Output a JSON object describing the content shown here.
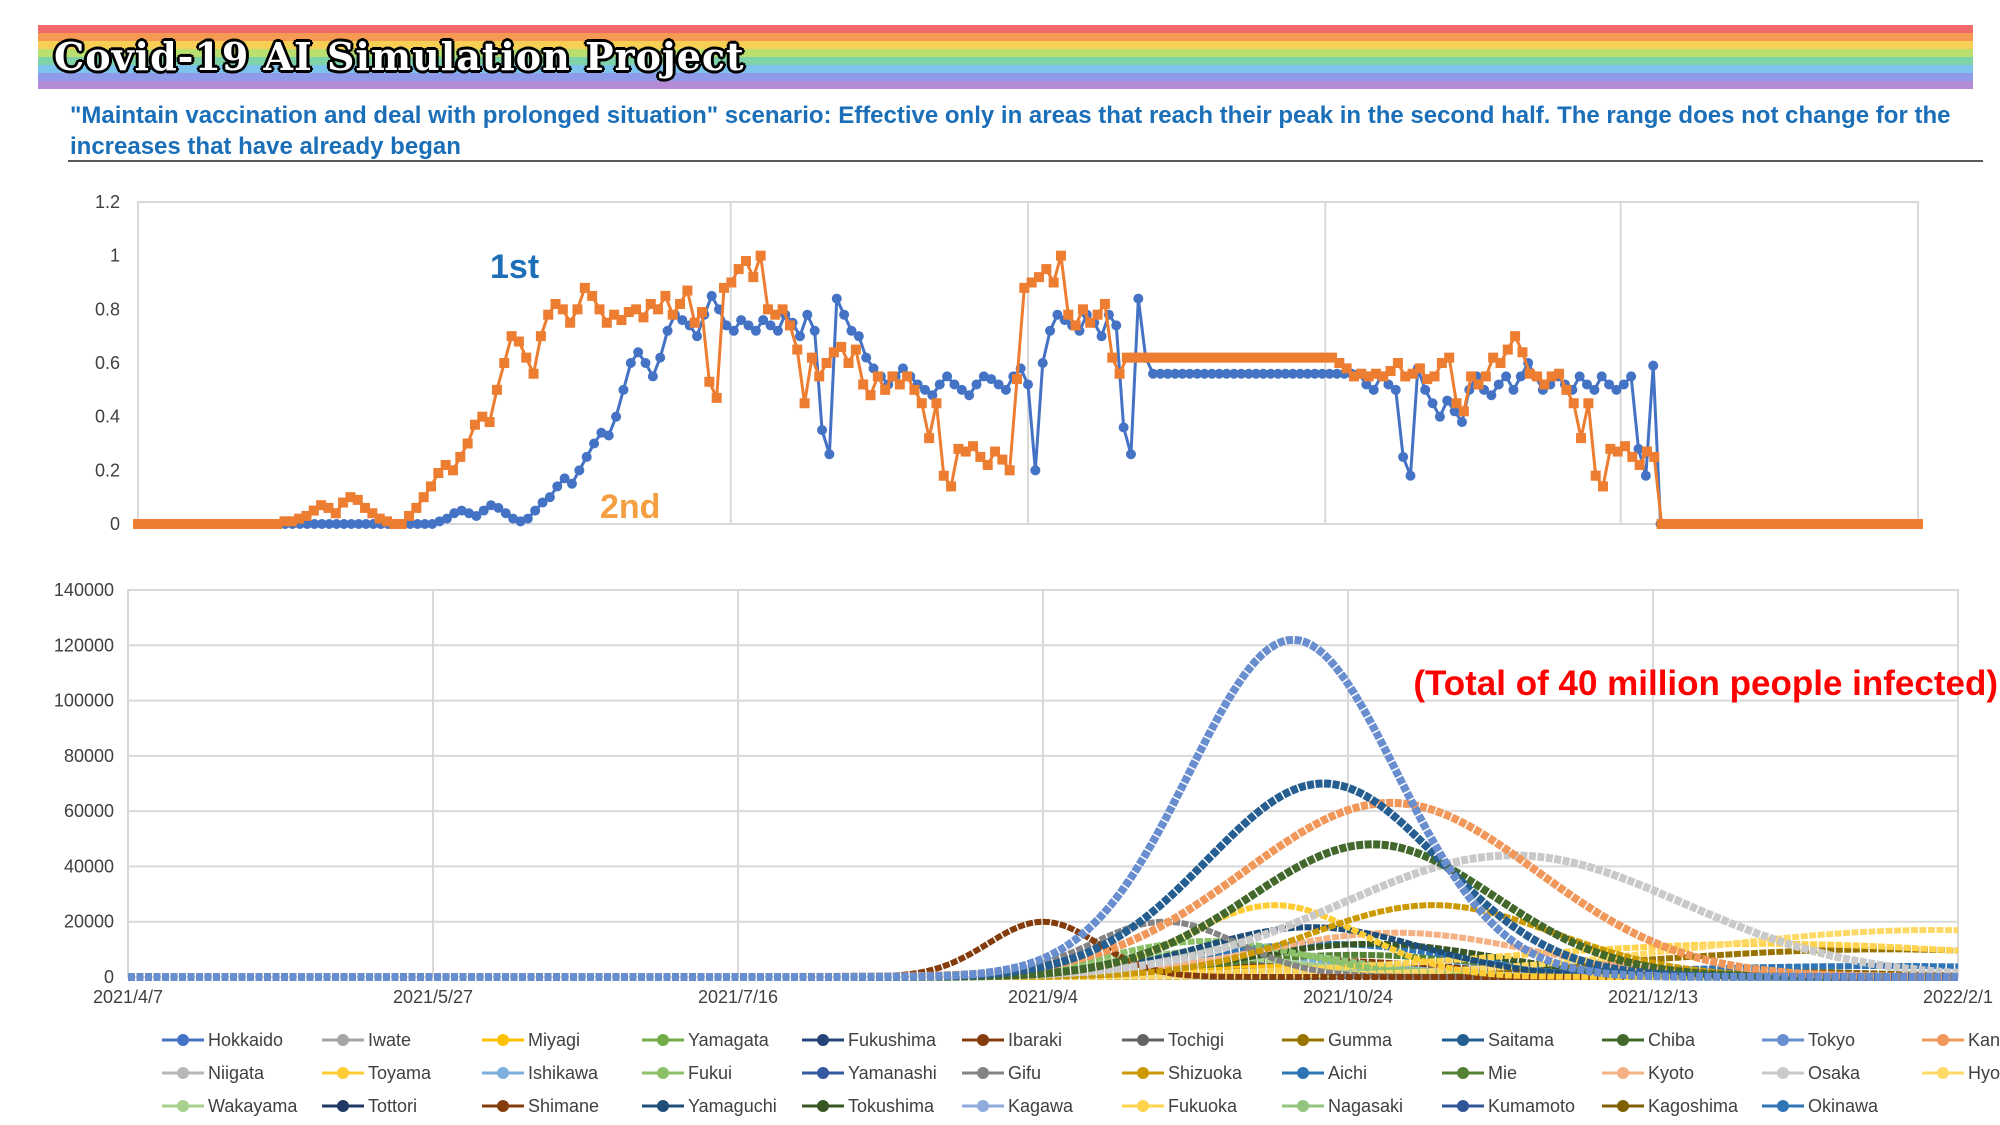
{
  "header": {
    "title": "Covid-19 AI Simulation Project",
    "subtitle": "\"Maintain vaccination and deal with prolonged situation\" scenario: Effective only in areas that reach their peak in the second half. The range does not change for the increases that have already began",
    "rainbow_colors": [
      "#f16a6a",
      "#f59a52",
      "#f7cf55",
      "#b9df6e",
      "#7fd3a8",
      "#7cc4ec",
      "#8f9be8",
      "#b48ad6"
    ]
  },
  "chart_data": [
    {
      "type": "line",
      "ylim": [
        0,
        1.2
      ],
      "yticks": [
        "0",
        "0.2",
        "0.4",
        "0.6",
        "0.8",
        "1",
        "1.2"
      ],
      "annotations": [
        {
          "text": "1st",
          "color": "#1f6fb8"
        },
        {
          "text": "2nd",
          "color": "#f4a040"
        }
      ],
      "series": [
        {
          "color": "#4472c4",
          "values": [
            0,
            0,
            0,
            0,
            0,
            0,
            0,
            0,
            0,
            0,
            0,
            0,
            0,
            0,
            0,
            0,
            0,
            0,
            0,
            0,
            0,
            0,
            0,
            0,
            0,
            0,
            0,
            0,
            0,
            0,
            0,
            0,
            0,
            0,
            0,
            0,
            0,
            0,
            0,
            0,
            0,
            0.01,
            0.02,
            0.04,
            0.05,
            0.04,
            0.03,
            0.05,
            0.07,
            0.06,
            0.04,
            0.02,
            0.01,
            0.02,
            0.05,
            0.08,
            0.1,
            0.14,
            0.17,
            0.15,
            0.2,
            0.25,
            0.3,
            0.34,
            0.33,
            0.4,
            0.5,
            0.6,
            0.64,
            0.6,
            0.55,
            0.62,
            0.72,
            0.78,
            0.76,
            0.74,
            0.7,
            0.78,
            0.85,
            0.8,
            0.74,
            0.72,
            0.76,
            0.74,
            0.72,
            0.76,
            0.74,
            0.72,
            0.78,
            0.75,
            0.7,
            0.78,
            0.72,
            0.35,
            0.26,
            0.84,
            0.78,
            0.72,
            0.7,
            0.62,
            0.58,
            0.55,
            0.52,
            0.55,
            0.58,
            0.55,
            0.52,
            0.5,
            0.48,
            0.52,
            0.55,
            0.52,
            0.5,
            0.48,
            0.52,
            0.55,
            0.54,
            0.52,
            0.5,
            0.55,
            0.58,
            0.52,
            0.2,
            0.6,
            0.72,
            0.78,
            0.76,
            0.74,
            0.72,
            0.78,
            0.75,
            0.7,
            0.78,
            0.74,
            0.36,
            0.26,
            0.84,
            0.62,
            0.56,
            0.56,
            0.56,
            0.56,
            0.56,
            0.56,
            0.56,
            0.56,
            0.56,
            0.56,
            0.56,
            0.56,
            0.56,
            0.56,
            0.56,
            0.56,
            0.56,
            0.56,
            0.56,
            0.56,
            0.56,
            0.56,
            0.56,
            0.56,
            0.56,
            0.56,
            0.56,
            0.56,
            0.56,
            0.52,
            0.5,
            0.55,
            0.52,
            0.5,
            0.25,
            0.18,
            0.58,
            0.5,
            0.45,
            0.4,
            0.46,
            0.42,
            0.38,
            0.5,
            0.55,
            0.5,
            0.48,
            0.52,
            0.55,
            0.5,
            0.55,
            0.6,
            0.55,
            0.5,
            0.52,
            0.55,
            0.52,
            0.5,
            0.55,
            0.52,
            0.5,
            0.55,
            0.52,
            0.5,
            0.52,
            0.55,
            0.28,
            0.18,
            0.59,
            0,
            0,
            0,
            0,
            0,
            0,
            0,
            0,
            0,
            0,
            0,
            0,
            0,
            0,
            0,
            0,
            0,
            0,
            0,
            0,
            0,
            0,
            0,
            0,
            0,
            0,
            0,
            0,
            0,
            0,
            0,
            0,
            0,
            0,
            0,
            0
          ]
        },
        {
          "color": "#ed7d31",
          "values": [
            0,
            0,
            0,
            0,
            0,
            0,
            0,
            0,
            0,
            0,
            0,
            0,
            0,
            0,
            0,
            0,
            0,
            0,
            0,
            0,
            0.01,
            0.01,
            0.02,
            0.03,
            0.05,
            0.07,
            0.06,
            0.04,
            0.08,
            0.1,
            0.09,
            0.06,
            0.04,
            0.02,
            0.01,
            0,
            0,
            0.03,
            0.06,
            0.1,
            0.14,
            0.19,
            0.22,
            0.2,
            0.25,
            0.3,
            0.37,
            0.4,
            0.38,
            0.5,
            0.6,
            0.7,
            0.68,
            0.62,
            0.56,
            0.7,
            0.78,
            0.82,
            0.8,
            0.75,
            0.8,
            0.88,
            0.85,
            0.8,
            0.75,
            0.78,
            0.76,
            0.79,
            0.8,
            0.77,
            0.82,
            0.8,
            0.85,
            0.78,
            0.82,
            0.87,
            0.75,
            0.79,
            0.53,
            0.47,
            0.88,
            0.9,
            0.95,
            0.98,
            0.92,
            1,
            0.8,
            0.78,
            0.8,
            0.74,
            0.65,
            0.45,
            0.62,
            0.55,
            0.6,
            0.64,
            0.66,
            0.6,
            0.65,
            0.52,
            0.48,
            0.55,
            0.5,
            0.55,
            0.52,
            0.55,
            0.5,
            0.45,
            0.32,
            0.45,
            0.18,
            0.14,
            0.28,
            0.27,
            0.29,
            0.25,
            0.22,
            0.27,
            0.24,
            0.2,
            0.54,
            0.88,
            0.9,
            0.92,
            0.95,
            0.9,
            1,
            0.78,
            0.74,
            0.8,
            0.75,
            0.78,
            0.82,
            0.62,
            0.56,
            0.62,
            0.62,
            0.62,
            0.62,
            0.62,
            0.62,
            0.62,
            0.62,
            0.62,
            0.62,
            0.62,
            0.62,
            0.62,
            0.62,
            0.62,
            0.62,
            0.62,
            0.62,
            0.62,
            0.62,
            0.62,
            0.62,
            0.62,
            0.62,
            0.62,
            0.62,
            0.62,
            0.62,
            0.62,
            0.6,
            0.58,
            0.55,
            0.56,
            0.55,
            0.56,
            0.55,
            0.57,
            0.6,
            0.55,
            0.56,
            0.58,
            0.54,
            0.55,
            0.6,
            0.62,
            0.45,
            0.42,
            0.55,
            0.52,
            0.55,
            0.62,
            0.6,
            0.65,
            0.7,
            0.64,
            0.56,
            0.55,
            0.52,
            0.55,
            0.56,
            0.5,
            0.45,
            0.32,
            0.45,
            0.18,
            0.14,
            0.28,
            0.27,
            0.29,
            0.25,
            0.22,
            0.27,
            0.25,
            0,
            0,
            0,
            0,
            0,
            0,
            0,
            0,
            0,
            0,
            0,
            0,
            0,
            0,
            0,
            0,
            0,
            0,
            0,
            0,
            0,
            0,
            0,
            0,
            0,
            0,
            0,
            0,
            0,
            0,
            0,
            0,
            0,
            0,
            0,
            0
          ]
        }
      ]
    },
    {
      "type": "line",
      "ylim": [
        0,
        140000
      ],
      "yticks": [
        "0",
        "20000",
        "40000",
        "60000",
        "80000",
        "100000",
        "120000",
        "140000"
      ],
      "x_range": [
        "2021-04-07",
        "2022-02-01"
      ],
      "xtick_labels": [
        "2021/4/7",
        "2021/5/27",
        "2021/7/16",
        "2021/9/4",
        "2021/10/24",
        "2021/12/13",
        "2022/2/1"
      ],
      "annotation": {
        "text": "(Total of 40 million people infected)",
        "color": "#ff0000"
      },
      "series": [
        {
          "name": "Hokkaido",
          "color": "#4472c4",
          "peak_date": "2021-11-20",
          "peak_value": 4000,
          "width_days": 30
        },
        {
          "name": "Iwate",
          "color": "#a5a5a5",
          "peak_date": "2021-11-01",
          "peak_value": 1500,
          "width_days": 25
        },
        {
          "name": "Miyagi",
          "color": "#ffc000",
          "peak_date": "2021-10-15",
          "peak_value": 4500,
          "width_days": 22
        },
        {
          "name": "Yamagata",
          "color": "#70ad47",
          "peak_date": "2021-11-10",
          "peak_value": 1500,
          "width_days": 25
        },
        {
          "name": "Fukushima",
          "color": "#264478",
          "peak_date": "2021-11-05",
          "peak_value": 2500,
          "width_days": 25
        },
        {
          "name": "Ibaraki",
          "color": "#843c0c",
          "peak_date": "2021-10-18",
          "peak_value": 6000,
          "width_days": 22
        },
        {
          "name": "Tochigi",
          "color": "#636363",
          "peak_date": "2021-10-20",
          "peak_value": 4000,
          "width_days": 22
        },
        {
          "name": "Gumma",
          "color": "#997300",
          "peak_date": "2022-01-20",
          "peak_value": 10000,
          "width_days": 40
        },
        {
          "name": "Saitama",
          "color": "#255e91",
          "peak_date": "2021-10-20",
          "peak_value": 70000,
          "width_days": 19
        },
        {
          "name": "Chiba",
          "color": "#43682b",
          "peak_date": "2021-10-28",
          "peak_value": 48000,
          "width_days": 20
        },
        {
          "name": "Tokyo",
          "color": "#698ed0",
          "peak_date": "2021-10-15",
          "peak_value": 122000,
          "width_days": 17
        },
        {
          "name": "Kanagawa",
          "color": "#f1975a",
          "peak_date": "2021-10-31",
          "peak_value": 63000,
          "width_days": 24
        },
        {
          "name": "Niigata",
          "color": "#b7b7b7",
          "peak_date": "2021-11-12",
          "peak_value": 2500,
          "width_days": 25
        },
        {
          "name": "Toyama",
          "color": "#ffcd33",
          "peak_date": "2021-10-12",
          "peak_value": 26000,
          "width_days": 14
        },
        {
          "name": "Ishikawa",
          "color": "#7cafdd",
          "peak_date": "2021-10-10",
          "peak_value": 6000,
          "width_days": 20
        },
        {
          "name": "Fukui",
          "color": "#8cc168",
          "peak_date": "2021-10-01",
          "peak_value": 13000,
          "width_days": 16
        },
        {
          "name": "Yamanashi",
          "color": "#335aa1",
          "peak_date": "2021-11-20",
          "peak_value": 2500,
          "width_days": 30
        },
        {
          "name": "Gifu",
          "color": "#848484",
          "peak_date": "2021-09-24",
          "peak_value": 20000,
          "width_days": 12
        },
        {
          "name": "Shizuoka",
          "color": "#cc9a00",
          "peak_date": "2021-11-07",
          "peak_value": 26000,
          "width_days": 20
        },
        {
          "name": "Aichi",
          "color": "#2e75b6",
          "peak_date": "2021-10-20",
          "peak_value": 12000,
          "width_days": 22
        },
        {
          "name": "Mie",
          "color": "#548235",
          "peak_date": "2021-10-25",
          "peak_value": 8000,
          "width_days": 22
        },
        {
          "name": "Kyoto",
          "color": "#f4b183",
          "peak_date": "2021-11-01",
          "peak_value": 16000,
          "width_days": 22
        },
        {
          "name": "Osaka",
          "color": "#c9c9c9",
          "peak_date": "2021-11-20",
          "peak_value": 44000,
          "width_days": 28
        },
        {
          "name": "Hyogo",
          "color": "#ffd966",
          "peak_date": "2022-01-28",
          "peak_value": 17000,
          "width_days": 40
        },
        {
          "name": "Wakayama",
          "color": "#a9d18e",
          "peak_date": "2021-09-28",
          "peak_value": 8000,
          "width_days": 18
        },
        {
          "name": "Tottori",
          "color": "#1f3864",
          "peak_date": "2021-11-10",
          "peak_value": 1500,
          "width_days": 25
        },
        {
          "name": "Shimane",
          "color": "#843c0c",
          "peak_date": "2021-09-04",
          "peak_value": 20000,
          "width_days": 9
        },
        {
          "name": "Yamaguchi",
          "color": "#1f4e79",
          "peak_date": "2021-10-18",
          "peak_value": 18000,
          "width_days": 18
        },
        {
          "name": "Tokushima",
          "color": "#375623",
          "peak_date": "2021-10-28",
          "peak_value": 12000,
          "width_days": 20
        },
        {
          "name": "Kagawa",
          "color": "#8faadc",
          "peak_date": "2021-11-25",
          "peak_value": 4000,
          "width_days": 28
        },
        {
          "name": "Fukuoka",
          "color": "#ffd34d",
          "peak_date": "2022-01-01",
          "peak_value": 12000,
          "width_days": 45
        },
        {
          "name": "Nagasaki",
          "color": "#92c47d",
          "peak_date": "2021-10-05",
          "peak_value": 10000,
          "width_days": 18
        },
        {
          "name": "Kumamoto",
          "color": "#2f5597",
          "peak_date": "2021-11-25",
          "peak_value": 3000,
          "width_days": 28
        },
        {
          "name": "Kagoshima",
          "color": "#7f6000",
          "peak_date": "2021-12-10",
          "peak_value": 3000,
          "width_days": 30
        },
        {
          "name": "Okinawa",
          "color": "#2e75b6",
          "peak_date": "2022-01-20",
          "peak_value": 4000,
          "width_days": 40
        }
      ]
    }
  ]
}
